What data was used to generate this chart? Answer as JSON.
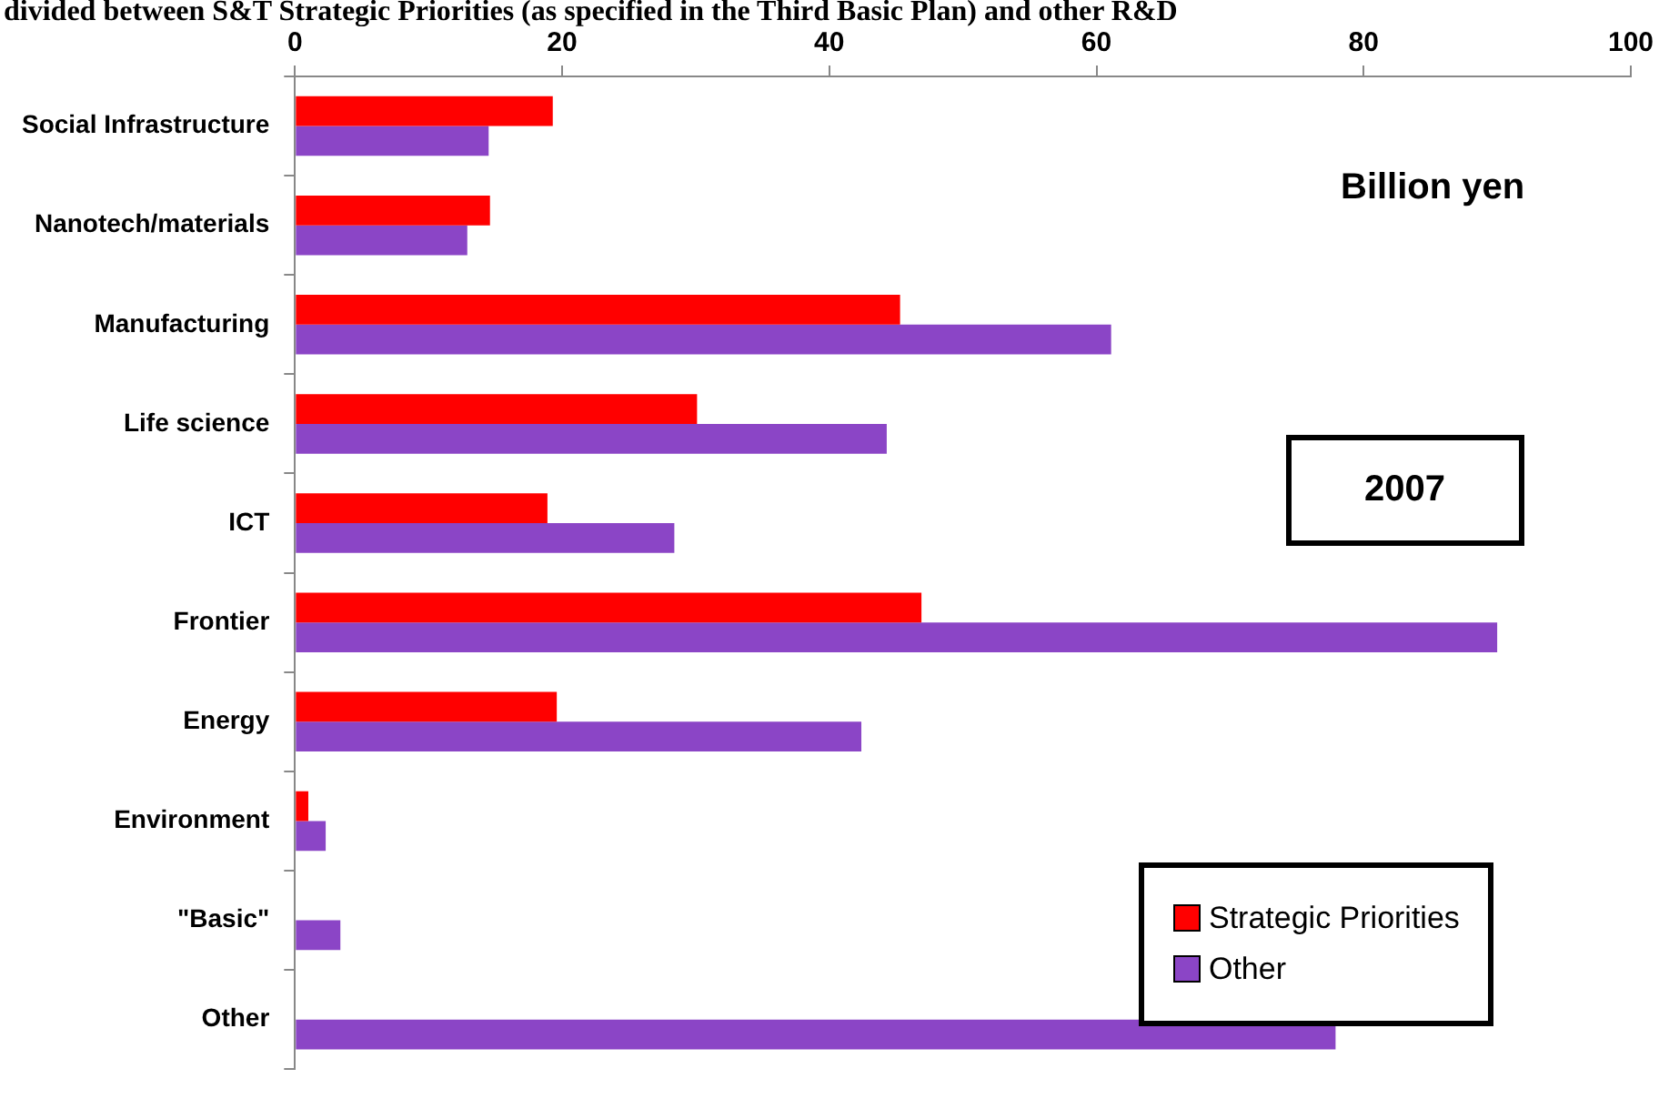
{
  "chart_data": {
    "type": "bar",
    "orientation": "horizontal",
    "title": "divided between S&T Strategic Priorities (as specified in the Third Basic Plan) and other R&D",
    "categories": [
      "Social Infrastructure",
      "Nanotech/materials",
      "Manufacturing",
      "Life science",
      "ICT",
      "Frontier",
      "Energy",
      "Environment",
      "\"Basic\"",
      "Other"
    ],
    "series": [
      {
        "name": "Strategic Priorities",
        "color": "#ff0000",
        "values": [
          19.3,
          14.6,
          45.3,
          30.1,
          18.9,
          46.9,
          19.6,
          1.0,
          null,
          null
        ]
      },
      {
        "name": "Other",
        "color": "#8b45c6",
        "values": [
          14.5,
          12.9,
          61.1,
          44.3,
          28.4,
          90.0,
          42.4,
          2.3,
          3.4,
          77.9
        ]
      }
    ],
    "xlim": [
      0,
      100
    ],
    "xticks": [
      0,
      20,
      40,
      60,
      80,
      100
    ],
    "grid": false,
    "legend": "bottom right",
    "annotations": [
      "Billion yen",
      "2007"
    ]
  }
}
